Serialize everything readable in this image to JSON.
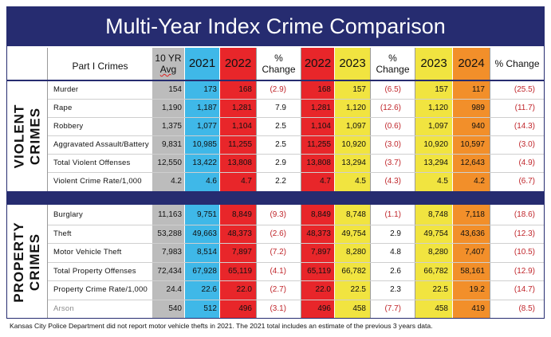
{
  "title": "Multi-Year Index Crime Comparison",
  "colors": {
    "navy": "#262c70",
    "avg_gray": "#bcbcbc",
    "blue_2021": "#3fb8e8",
    "red_2022": "#e8262a",
    "yellow_2023": "#f1e440",
    "orange_2024": "#f28f2a",
    "negative_red": "#c0262b"
  },
  "header": {
    "part1": "Part I Crimes",
    "avg_line1": "10 YR",
    "avg_line2": "Avg",
    "y2021": "2021",
    "y2022a": "2022",
    "pct1_line1": "%",
    "pct1_line2": "Change",
    "y2022b": "2022",
    "y2023a": "2023",
    "pct2_line1": "%",
    "pct2_line2": "Change",
    "y2023b": "2023",
    "y2024": "2024",
    "pct3": "% Change"
  },
  "sections": {
    "violent_line1": "VIOLENT",
    "violent_line2": "CRIMES",
    "property_line1": "PROPERTY",
    "property_line2": "CRIMES"
  },
  "violent_rows": [
    {
      "label": "Murder",
      "avg": "154",
      "y2021": "173",
      "y2022a": "168",
      "pct1": "(2.9)",
      "y2022b": "168",
      "y2023a": "157",
      "pct2": "(6.5)",
      "y2023b": "157",
      "y2024": "117",
      "pct3": "(25.5)"
    },
    {
      "label": "Rape",
      "avg": "1,190",
      "y2021": "1,187",
      "y2022a": "1,281",
      "pct1": "7.9",
      "y2022b": "1,281",
      "y2023a": "1,120",
      "pct2": "(12.6)",
      "y2023b": "1,120",
      "y2024": "989",
      "pct3": "(11.7)"
    },
    {
      "label": "Robbery",
      "avg": "1,375",
      "y2021": "1,077",
      "y2022a": "1,104",
      "pct1": "2.5",
      "y2022b": "1,104",
      "y2023a": "1,097",
      "pct2": "(0.6)",
      "y2023b": "1,097",
      "y2024": "940",
      "pct3": "(14.3)"
    },
    {
      "label": "Aggravated Assault/Battery",
      "avg": "9,831",
      "y2021": "10,985",
      "y2022a": "11,255",
      "pct1": "2.5",
      "y2022b": "11,255",
      "y2023a": "10,920",
      "pct2": "(3.0)",
      "y2023b": "10,920",
      "y2024": "10,597",
      "pct3": "(3.0)"
    },
    {
      "label": "Total Violent Offenses",
      "avg": "12,550",
      "y2021": "13,422",
      "y2022a": "13,808",
      "pct1": "2.9",
      "y2022b": "13,808",
      "y2023a": "13,294",
      "pct2": "(3.7)",
      "y2023b": "13,294",
      "y2024": "12,643",
      "pct3": "(4.9)"
    },
    {
      "label": "Violent Crime Rate/1,000",
      "avg": "4.2",
      "y2021": "4.6",
      "y2022a": "4.7",
      "pct1": "2.2",
      "y2022b": "4.7",
      "y2023a": "4.5",
      "pct2": "(4.3)",
      "y2023b": "4.5",
      "y2024": "4.2",
      "pct3": "(6.7)"
    }
  ],
  "property_rows": [
    {
      "label": "Burglary",
      "avg": "11,163",
      "y2021": "9,751",
      "y2022a": "8,849",
      "pct1": "(9.3)",
      "y2022b": "8,849",
      "y2023a": "8,748",
      "pct2": "(1.1)",
      "y2023b": "8,748",
      "y2024": "7,118",
      "pct3": "(18.6)"
    },
    {
      "label": "Theft",
      "avg": "53,288",
      "y2021": "49,663",
      "y2022a": "48,373",
      "pct1": "(2.6)",
      "y2022b": "48,373",
      "y2023a": "49,754",
      "pct2": "2.9",
      "y2023b": "49,754",
      "y2024": "43,636",
      "pct3": "(12.3)"
    },
    {
      "label": "Motor Vehicle Theft",
      "avg": "7,983",
      "y2021": "8,514",
      "y2022a": "7,897",
      "pct1": "(7.2)",
      "y2022b": "7,897",
      "y2023a": "8,280",
      "pct2": "4.8",
      "y2023b": "8,280",
      "y2024": "7,407",
      "pct3": "(10.5)"
    },
    {
      "label": "Total Property Offenses",
      "avg": "72,434",
      "y2021": "67,928",
      "y2022a": "65,119",
      "pct1": "(4.1)",
      "y2022b": "65,119",
      "y2023a": "66,782",
      "pct2": "2.6",
      "y2023b": "66,782",
      "y2024": "58,161",
      "pct3": "(12.9)"
    },
    {
      "label": "Property Crime Rate/1,000",
      "avg": "24.4",
      "y2021": "22.6",
      "y2022a": "22.0",
      "pct1": "(2.7)",
      "y2022b": "22.0",
      "y2023a": "22.5",
      "pct2": "2.3",
      "y2023b": "22.5",
      "y2024": "19.2",
      "pct3": "(14.7)"
    },
    {
      "label": "Arson",
      "avg": "540",
      "y2021": "512",
      "y2022a": "496",
      "pct1": "(3.1)",
      "y2022b": "496",
      "y2023a": "458",
      "pct2": "(7.7)",
      "y2023b": "458",
      "y2024": "419",
      "pct3": "(8.5)"
    }
  ],
  "footnote": "Kansas City Police Department did not report motor vehicle thefts in 2021. The 2021 total includes an estimate of the previous 3 years data."
}
